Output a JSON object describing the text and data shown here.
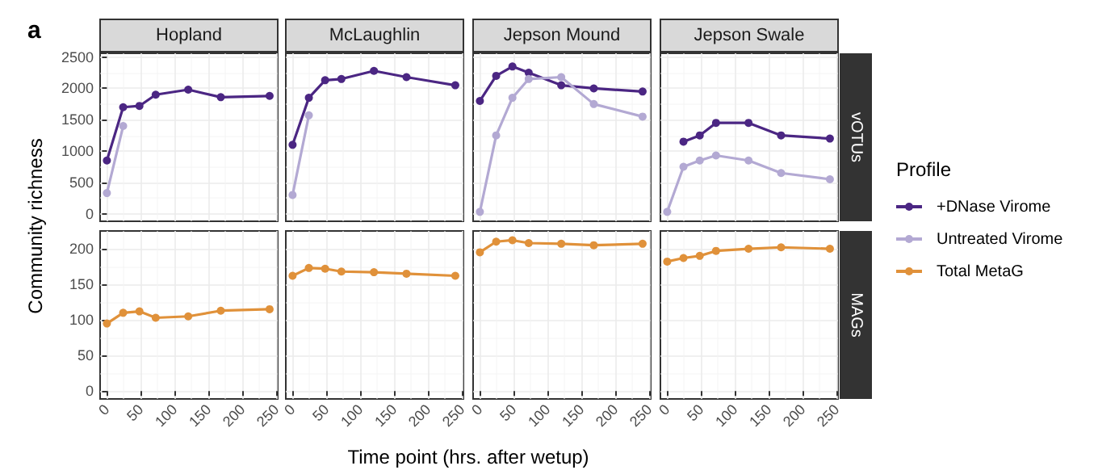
{
  "chart_data": [
    {
      "type": "line",
      "title": "Hopland",
      "ylabel": "Community richness",
      "annotations": [
        "a"
      ],
      "legend": "right",
      "legend_title": "Profile",
      "x": [
        0,
        24,
        48,
        72,
        120,
        168,
        240
      ],
      "xlim": [
        -10,
        252
      ],
      "xticks": [
        0,
        50,
        100,
        150,
        200,
        250
      ],
      "ylim": [
        -120,
        2560
      ],
      "yticks": [
        0,
        500,
        1000,
        1500,
        2000,
        2500
      ],
      "grid": true,
      "marker": "circle",
      "tick_labels": "y",
      "series": [
        {
          "name": "+DNase Virome",
          "color": "#4b2683",
          "values": [
            850,
            1700,
            1720,
            1900,
            1980,
            1860,
            1880
          ]
        },
        {
          "name": "Untreated Virome",
          "color": "#b3a9d3",
          "values": [
            330,
            1400,
            null,
            null,
            null,
            null,
            null
          ]
        }
      ]
    },
    {
      "type": "line",
      "title": "McLaughlin",
      "x": [
        0,
        24,
        48,
        72,
        120,
        168,
        240
      ],
      "xlim": [
        -10,
        252
      ],
      "xticks": [
        0,
        50,
        100,
        150,
        200,
        250
      ],
      "ylim": [
        -120,
        2560
      ],
      "yticks": [
        0,
        500,
        1000,
        1500,
        2000,
        2500
      ],
      "grid": true,
      "marker": "circle",
      "tick_labels": false,
      "series": [
        {
          "color": "#4b2683",
          "values": [
            1100,
            1850,
            2130,
            2150,
            2280,
            2180,
            2050
          ]
        },
        {
          "color": "#b3a9d3",
          "values": [
            300,
            1570,
            null,
            null,
            null,
            null,
            null
          ]
        }
      ]
    },
    {
      "type": "line",
      "title": "Jepson Mound",
      "x": [
        0,
        24,
        48,
        72,
        120,
        168,
        240
      ],
      "xlim": [
        -10,
        252
      ],
      "xticks": [
        0,
        50,
        100,
        150,
        200,
        250
      ],
      "ylim": [
        -120,
        2560
      ],
      "yticks": [
        0,
        500,
        1000,
        1500,
        2000,
        2500
      ],
      "grid": true,
      "marker": "circle",
      "tick_labels": false,
      "series": [
        {
          "color": "#4b2683",
          "values": [
            1800,
            2200,
            2350,
            2250,
            2050,
            2000,
            1950
          ]
        },
        {
          "color": "#b3a9d3",
          "values": [
            30,
            1250,
            1850,
            2150,
            2180,
            1750,
            1550
          ]
        }
      ]
    },
    {
      "type": "line",
      "title": "Jepson Swale",
      "annotations": [
        "vOTUs"
      ],
      "x": [
        0,
        24,
        48,
        72,
        120,
        168,
        240
      ],
      "xlim": [
        -10,
        252
      ],
      "xticks": [
        0,
        50,
        100,
        150,
        200,
        250
      ],
      "ylim": [
        -120,
        2560
      ],
      "yticks": [
        0,
        500,
        1000,
        1500,
        2000,
        2500
      ],
      "grid": true,
      "marker": "circle",
      "tick_labels": false,
      "series": [
        {
          "color": "#4b2683",
          "values": [
            null,
            1150,
            1250,
            1450,
            1450,
            1250,
            1200
          ]
        },
        {
          "color": "#b3a9d3",
          "values": [
            30,
            750,
            850,
            930,
            850,
            650,
            550
          ]
        }
      ]
    },
    {
      "type": "line",
      "legend": "right",
      "x": [
        0,
        24,
        48,
        72,
        120,
        168,
        240
      ],
      "xlim": [
        -10,
        252
      ],
      "xticks": [
        0,
        50,
        100,
        150,
        200,
        250
      ],
      "ylim": [
        -11,
        225
      ],
      "yticks": [
        0,
        50,
        100,
        150,
        200
      ],
      "grid": true,
      "marker": "circle",
      "series": [
        {
          "name": "Total MetaG",
          "color": "#e0913a",
          "values": [
            95,
            110,
            112,
            103,
            105,
            113,
            115
          ]
        }
      ]
    },
    {
      "type": "line",
      "xlabel": "Time point (hrs. after wetup)",
      "x": [
        0,
        24,
        48,
        72,
        120,
        168,
        240
      ],
      "xlim": [
        -10,
        252
      ],
      "xticks": [
        0,
        50,
        100,
        150,
        200,
        250
      ],
      "ylim": [
        -11,
        225
      ],
      "yticks": [
        0,
        50,
        100,
        150,
        200
      ],
      "grid": true,
      "marker": "circle",
      "tick_labels": "x",
      "series": [
        {
          "color": "#e0913a",
          "values": [
            162,
            173,
            172,
            168,
            167,
            165,
            162
          ]
        }
      ]
    },
    {
      "type": "line",
      "x": [
        0,
        24,
        48,
        72,
        120,
        168,
        240
      ],
      "xlim": [
        -10,
        252
      ],
      "xticks": [
        0,
        50,
        100,
        150,
        200,
        250
      ],
      "ylim": [
        -11,
        225
      ],
      "yticks": [
        0,
        50,
        100,
        150,
        200
      ],
      "grid": true,
      "marker": "circle",
      "tick_labels": "x",
      "series": [
        {
          "color": "#e0913a",
          "values": [
            195,
            210,
            212,
            208,
            207,
            205,
            207
          ]
        }
      ]
    },
    {
      "type": "line",
      "annotations": [
        "MAGs"
      ],
      "x": [
        0,
        24,
        48,
        72,
        120,
        168,
        240
      ],
      "xlim": [
        -10,
        252
      ],
      "xticks": [
        0,
        50,
        100,
        150,
        200,
        250
      ],
      "ylim": [
        -11,
        225
      ],
      "yticks": [
        0,
        50,
        100,
        150,
        200
      ],
      "grid": true,
      "marker": "circle",
      "tick_labels": "x",
      "series": [
        {
          "color": "#e0913a",
          "values": [
            182,
            187,
            190,
            197,
            200,
            202,
            200
          ]
        }
      ]
    }
  ]
}
